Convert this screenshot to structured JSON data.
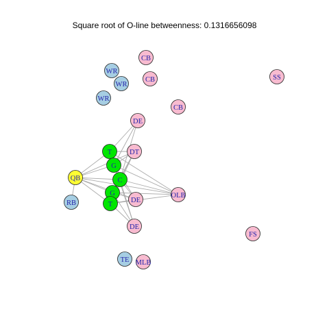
{
  "title": "Square root of O-line betweenness: 0.1316656098",
  "colors": {
    "offense_line": "#00e600",
    "quarterback": "#ffff33",
    "offense_other": "#a6cee3",
    "defense": "#f8bbd0",
    "edge": "#aaaaaa",
    "label": "#2222aa"
  },
  "nodes": [
    {
      "id": "cb1",
      "label": "CB",
      "role": "defense"
    },
    {
      "id": "cb2",
      "label": "CB",
      "role": "defense"
    },
    {
      "id": "cb3",
      "label": "CB",
      "role": "defense"
    },
    {
      "id": "ss",
      "label": "SS",
      "role": "defense"
    },
    {
      "id": "wr1",
      "label": "WR",
      "role": "offense_other"
    },
    {
      "id": "wr2",
      "label": "WR",
      "role": "offense_other"
    },
    {
      "id": "wr3",
      "label": "WR",
      "role": "offense_other"
    },
    {
      "id": "de1",
      "label": "DE",
      "role": "defense"
    },
    {
      "id": "t1",
      "label": "T",
      "role": "offense_line"
    },
    {
      "id": "dt",
      "label": "DT",
      "role": "defense"
    },
    {
      "id": "g1",
      "label": "G",
      "role": "offense_line"
    },
    {
      "id": "qb",
      "label": "QB",
      "role": "quarterback"
    },
    {
      "id": "c",
      "label": "C",
      "role": "offense_line"
    },
    {
      "id": "g2",
      "label": "G",
      "role": "offense_line"
    },
    {
      "id": "de2",
      "label": "DE",
      "role": "defense"
    },
    {
      "id": "t2",
      "label": "T",
      "role": "offense_line"
    },
    {
      "id": "olb",
      "label": "OLB",
      "role": "defense"
    },
    {
      "id": "rb",
      "label": "RB",
      "role": "offense_other"
    },
    {
      "id": "de3",
      "label": "DE",
      "role": "defense"
    },
    {
      "id": "fs",
      "label": "FS",
      "role": "defense"
    },
    {
      "id": "te",
      "label": "TE",
      "role": "offense_other"
    },
    {
      "id": "mlb",
      "label": "MLB",
      "role": "defense"
    }
  ],
  "edges": [
    [
      "t1",
      "de1"
    ],
    [
      "t1",
      "dt"
    ],
    [
      "t1",
      "olb"
    ],
    [
      "t1",
      "qb"
    ],
    [
      "t1",
      "g1"
    ],
    [
      "t1",
      "de3"
    ],
    [
      "g1",
      "de1"
    ],
    [
      "g1",
      "dt"
    ],
    [
      "g1",
      "de2"
    ],
    [
      "g1",
      "olb"
    ],
    [
      "g1",
      "qb"
    ],
    [
      "g1",
      "c"
    ],
    [
      "c",
      "de1"
    ],
    [
      "c",
      "dt"
    ],
    [
      "c",
      "de2"
    ],
    [
      "c",
      "olb"
    ],
    [
      "c",
      "qb"
    ],
    [
      "c",
      "g2"
    ],
    [
      "c",
      "de3"
    ],
    [
      "g2",
      "dt"
    ],
    [
      "g2",
      "de2"
    ],
    [
      "g2",
      "olb"
    ],
    [
      "g2",
      "qb"
    ],
    [
      "g2",
      "t2"
    ],
    [
      "g2",
      "de3"
    ],
    [
      "t2",
      "de2"
    ],
    [
      "t2",
      "de3"
    ],
    [
      "t2",
      "olb"
    ],
    [
      "t2",
      "qb"
    ],
    [
      "t2",
      "dt"
    ],
    [
      "qb",
      "rb"
    ],
    [
      "qb",
      "dt"
    ],
    [
      "qb",
      "olb"
    ],
    [
      "qb",
      "de2"
    ]
  ]
}
